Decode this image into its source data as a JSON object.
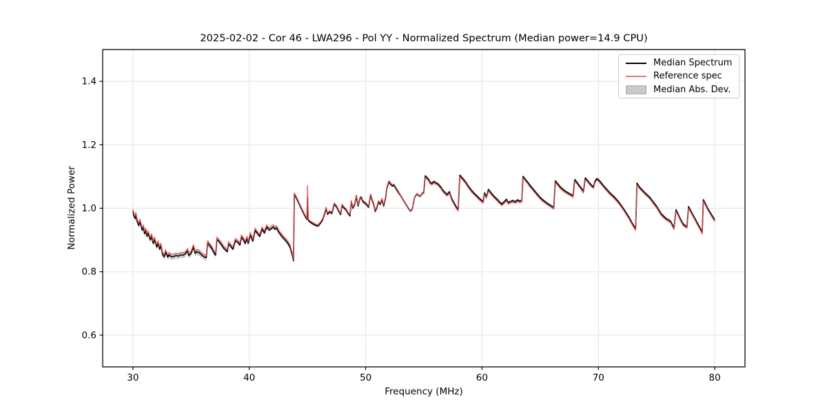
{
  "chart_data": {
    "type": "line",
    "title": "2025-02-02 - Cor 46 - LWA296 - Pol YY - Normalized Spectrum (Median power=14.9 CPU)",
    "xlabel": "Frequency (MHz)",
    "ylabel": "Normalized Power",
    "xlim": [
      27.4,
      82.6
    ],
    "ylim": [
      0.5,
      1.5
    ],
    "xticks": [
      30,
      40,
      50,
      60,
      70,
      80
    ],
    "yticks": [
      0.6,
      0.8,
      1.0,
      1.2,
      1.4
    ],
    "grid": true,
    "grid_color": "#e3e3e3",
    "spine_color": "#000000",
    "legend": {
      "position": "upper right",
      "entries": [
        {
          "label": "Median Spectrum",
          "type": "line",
          "color": "#000000"
        },
        {
          "label": "Reference spec",
          "type": "line",
          "color": "#f17070"
        },
        {
          "label": "Median Abs. Dev.",
          "type": "patch",
          "color": "#c9c9c9"
        }
      ]
    },
    "series": [
      {
        "name": "Median Spectrum",
        "color": "#000000",
        "points": [
          [
            30.0,
            0.99
          ],
          [
            30.1,
            0.975
          ],
          [
            30.2,
            0.968
          ],
          [
            30.25,
            0.98
          ],
          [
            30.35,
            0.96
          ],
          [
            30.5,
            0.946
          ],
          [
            30.6,
            0.958
          ],
          [
            30.8,
            0.931
          ],
          [
            30.9,
            0.94
          ],
          [
            31.0,
            0.92
          ],
          [
            31.1,
            0.93
          ],
          [
            31.2,
            0.912
          ],
          [
            31.3,
            0.922
          ],
          [
            31.5,
            0.9
          ],
          [
            31.6,
            0.913
          ],
          [
            31.75,
            0.889
          ],
          [
            31.85,
            0.902
          ],
          [
            32.05,
            0.878
          ],
          [
            32.15,
            0.89
          ],
          [
            32.3,
            0.871
          ],
          [
            32.4,
            0.883
          ],
          [
            32.55,
            0.853
          ],
          [
            32.7,
            0.847
          ],
          [
            32.8,
            0.862
          ],
          [
            33.0,
            0.846
          ],
          [
            33.1,
            0.853
          ],
          [
            33.3,
            0.847
          ],
          [
            33.5,
            0.848
          ],
          [
            33.7,
            0.851
          ],
          [
            33.9,
            0.849
          ],
          [
            34.1,
            0.853
          ],
          [
            34.3,
            0.852
          ],
          [
            34.5,
            0.856
          ],
          [
            34.7,
            0.866
          ],
          [
            34.8,
            0.851
          ],
          [
            35.0,
            0.858
          ],
          [
            35.2,
            0.878
          ],
          [
            35.35,
            0.858
          ],
          [
            35.5,
            0.863
          ],
          [
            35.7,
            0.86
          ],
          [
            35.9,
            0.853
          ],
          [
            36.1,
            0.847
          ],
          [
            36.3,
            0.844
          ],
          [
            36.42,
            0.89
          ],
          [
            36.6,
            0.882
          ],
          [
            36.8,
            0.872
          ],
          [
            37.0,
            0.857
          ],
          [
            37.1,
            0.852
          ],
          [
            37.22,
            0.902
          ],
          [
            37.4,
            0.895
          ],
          [
            37.6,
            0.885
          ],
          [
            37.8,
            0.874
          ],
          [
            38.0,
            0.867
          ],
          [
            38.1,
            0.863
          ],
          [
            38.22,
            0.888
          ],
          [
            38.4,
            0.88
          ],
          [
            38.6,
            0.871
          ],
          [
            38.8,
            0.898
          ],
          [
            39.0,
            0.893
          ],
          [
            39.2,
            0.884
          ],
          [
            39.32,
            0.909
          ],
          [
            39.5,
            0.9
          ],
          [
            39.65,
            0.889
          ],
          [
            39.8,
            0.905
          ],
          [
            39.9,
            0.889
          ],
          [
            40.1,
            0.916
          ],
          [
            40.3,
            0.896
          ],
          [
            40.5,
            0.93
          ],
          [
            40.7,
            0.92
          ],
          [
            40.9,
            0.911
          ],
          [
            41.1,
            0.934
          ],
          [
            41.3,
            0.922
          ],
          [
            41.5,
            0.941
          ],
          [
            41.7,
            0.931
          ],
          [
            41.9,
            0.936
          ],
          [
            42.05,
            0.941
          ],
          [
            42.2,
            0.934
          ],
          [
            42.35,
            0.938
          ],
          [
            42.5,
            0.926
          ],
          [
            42.8,
            0.911
          ],
          [
            43.0,
            0.903
          ],
          [
            43.3,
            0.89
          ],
          [
            43.5,
            0.877
          ],
          [
            43.7,
            0.851
          ],
          [
            43.8,
            0.834
          ],
          [
            43.87,
            1.044
          ],
          [
            44.0,
            1.035
          ],
          [
            44.2,
            1.02
          ],
          [
            44.5,
            0.996
          ],
          [
            44.8,
            0.974
          ],
          [
            44.95,
            0.965
          ],
          [
            45.0,
            1.032
          ],
          [
            45.07,
            0.962
          ],
          [
            45.2,
            0.957
          ],
          [
            45.5,
            0.95
          ],
          [
            45.7,
            0.946
          ],
          [
            45.9,
            0.944
          ],
          [
            46.1,
            0.952
          ],
          [
            46.3,
            0.963
          ],
          [
            46.5,
            0.986
          ],
          [
            46.6,
            0.999
          ],
          [
            46.72,
            0.981
          ],
          [
            46.9,
            0.988
          ],
          [
            47.1,
            0.984
          ],
          [
            47.3,
            1.013
          ],
          [
            47.5,
            1.004
          ],
          [
            47.7,
            0.99
          ],
          [
            47.85,
            0.98
          ],
          [
            47.97,
            1.009
          ],
          [
            48.1,
            1.002
          ],
          [
            48.3,
            0.995
          ],
          [
            48.5,
            0.983
          ],
          [
            48.65,
            0.976
          ],
          [
            48.77,
            1.02
          ],
          [
            48.9,
            1.0
          ],
          [
            49.05,
            1.01
          ],
          [
            49.2,
            1.038
          ],
          [
            49.35,
            1.007
          ],
          [
            49.5,
            1.029
          ],
          [
            49.62,
            1.034
          ],
          [
            49.75,
            1.021
          ],
          [
            49.9,
            1.017
          ],
          [
            50.1,
            1.01
          ],
          [
            50.25,
            1.003
          ],
          [
            50.42,
            1.041
          ],
          [
            50.55,
            1.026
          ],
          [
            50.7,
            1.011
          ],
          [
            50.82,
            0.99
          ],
          [
            50.95,
            1.0
          ],
          [
            51.1,
            1.02
          ],
          [
            51.25,
            1.012
          ],
          [
            51.4,
            1.027
          ],
          [
            51.55,
            1.007
          ],
          [
            51.7,
            1.03
          ],
          [
            51.82,
            1.063
          ],
          [
            52.0,
            1.083
          ],
          [
            52.15,
            1.075
          ],
          [
            52.3,
            1.07
          ],
          [
            52.45,
            1.072
          ],
          [
            52.6,
            1.062
          ],
          [
            52.8,
            1.05
          ],
          [
            53.0,
            1.04
          ],
          [
            53.2,
            1.028
          ],
          [
            53.5,
            1.01
          ],
          [
            53.7,
            0.998
          ],
          [
            53.85,
            0.991
          ],
          [
            54.0,
            0.996
          ],
          [
            54.2,
            1.034
          ],
          [
            54.4,
            1.045
          ],
          [
            54.55,
            1.04
          ],
          [
            54.7,
            1.038
          ],
          [
            54.85,
            1.046
          ],
          [
            55.0,
            1.051
          ],
          [
            55.12,
            1.102
          ],
          [
            55.25,
            1.097
          ],
          [
            55.4,
            1.091
          ],
          [
            55.55,
            1.081
          ],
          [
            55.7,
            1.078
          ],
          [
            55.85,
            1.084
          ],
          [
            56.0,
            1.081
          ],
          [
            56.2,
            1.077
          ],
          [
            56.45,
            1.067
          ],
          [
            56.6,
            1.058
          ],
          [
            56.8,
            1.05
          ],
          [
            57.0,
            1.043
          ],
          [
            57.2,
            1.052
          ],
          [
            57.4,
            1.03
          ],
          [
            57.6,
            1.016
          ],
          [
            57.8,
            1.003
          ],
          [
            57.95,
            0.996
          ],
          [
            58.1,
            1.104
          ],
          [
            58.35,
            1.093
          ],
          [
            58.6,
            1.082
          ],
          [
            58.85,
            1.068
          ],
          [
            59.1,
            1.056
          ],
          [
            59.35,
            1.046
          ],
          [
            59.6,
            1.037
          ],
          [
            59.85,
            1.028
          ],
          [
            60.1,
            1.021
          ],
          [
            60.22,
            1.048
          ],
          [
            60.38,
            1.036
          ],
          [
            60.55,
            1.059
          ],
          [
            60.72,
            1.051
          ],
          [
            60.9,
            1.043
          ],
          [
            61.1,
            1.035
          ],
          [
            61.3,
            1.028
          ],
          [
            61.5,
            1.02
          ],
          [
            61.7,
            1.013
          ],
          [
            61.9,
            1.02
          ],
          [
            62.1,
            1.028
          ],
          [
            62.25,
            1.018
          ],
          [
            62.45,
            1.021
          ],
          [
            62.65,
            1.024
          ],
          [
            62.85,
            1.02
          ],
          [
            63.05,
            1.026
          ],
          [
            63.25,
            1.022
          ],
          [
            63.42,
            1.025
          ],
          [
            63.52,
            1.1
          ],
          [
            63.7,
            1.092
          ],
          [
            63.9,
            1.083
          ],
          [
            64.1,
            1.073
          ],
          [
            64.35,
            1.062
          ],
          [
            64.6,
            1.051
          ],
          [
            64.85,
            1.04
          ],
          [
            65.1,
            1.03
          ],
          [
            65.4,
            1.021
          ],
          [
            65.7,
            1.013
          ],
          [
            66.0,
            1.006
          ],
          [
            66.17,
            1.002
          ],
          [
            66.3,
            1.086
          ],
          [
            66.5,
            1.077
          ],
          [
            66.75,
            1.066
          ],
          [
            67.0,
            1.058
          ],
          [
            67.3,
            1.05
          ],
          [
            67.6,
            1.044
          ],
          [
            67.82,
            1.039
          ],
          [
            67.97,
            1.09
          ],
          [
            68.15,
            1.082
          ],
          [
            68.35,
            1.072
          ],
          [
            68.55,
            1.062
          ],
          [
            68.72,
            1.053
          ],
          [
            68.87,
            1.095
          ],
          [
            69.05,
            1.088
          ],
          [
            69.25,
            1.079
          ],
          [
            69.45,
            1.071
          ],
          [
            69.58,
            1.067
          ],
          [
            69.72,
            1.086
          ],
          [
            69.87,
            1.093
          ],
          [
            70.0,
            1.09
          ],
          [
            70.2,
            1.082
          ],
          [
            70.45,
            1.07
          ],
          [
            70.7,
            1.06
          ],
          [
            71.0,
            1.048
          ],
          [
            71.4,
            1.034
          ],
          [
            71.8,
            1.017
          ],
          [
            72.2,
            0.996
          ],
          [
            72.6,
            0.973
          ],
          [
            72.95,
            0.95
          ],
          [
            73.2,
            0.935
          ],
          [
            73.32,
            1.079
          ],
          [
            73.5,
            1.068
          ],
          [
            73.8,
            1.056
          ],
          [
            74.1,
            1.045
          ],
          [
            74.4,
            1.035
          ],
          [
            74.7,
            1.02
          ],
          [
            75.0,
            1.006
          ],
          [
            75.4,
            0.982
          ],
          [
            75.8,
            0.968
          ],
          [
            76.2,
            0.959
          ],
          [
            76.5,
            0.938
          ],
          [
            76.67,
            0.995
          ],
          [
            76.85,
            0.982
          ],
          [
            77.05,
            0.966
          ],
          [
            77.25,
            0.952
          ],
          [
            77.45,
            0.945
          ],
          [
            77.62,
            0.942
          ],
          [
            77.75,
            1.005
          ],
          [
            77.95,
            0.991
          ],
          [
            78.2,
            0.974
          ],
          [
            78.45,
            0.957
          ],
          [
            78.7,
            0.94
          ],
          [
            78.92,
            0.924
          ],
          [
            79.02,
            1.027
          ],
          [
            79.2,
            1.014
          ],
          [
            79.4,
            0.999
          ],
          [
            79.6,
            0.987
          ],
          [
            79.8,
            0.975
          ],
          [
            80.0,
            0.963
          ]
        ]
      },
      {
        "name": "Reference spec",
        "color": "#e25252",
        "derived": "median_plus_offset",
        "offsets": [
          [
            30.0,
            43.8,
            0.007
          ],
          [
            43.8,
            53.0,
            0.004
          ],
          [
            53.0,
            55.0,
            0.001
          ],
          [
            55.0,
            80.2,
            -0.005
          ]
        ],
        "spike_x": 45.0,
        "spike_y": 1.071
      },
      {
        "name": "Median Abs. Dev.",
        "type": "band_around_median",
        "color": "rgba(150,150,150,0.45)",
        "half_width_ranges": [
          [
            30.0,
            37.0,
            0.01
          ],
          [
            37.0,
            44.0,
            0.006
          ],
          [
            44.0,
            80.2,
            0.005
          ]
        ]
      }
    ]
  }
}
